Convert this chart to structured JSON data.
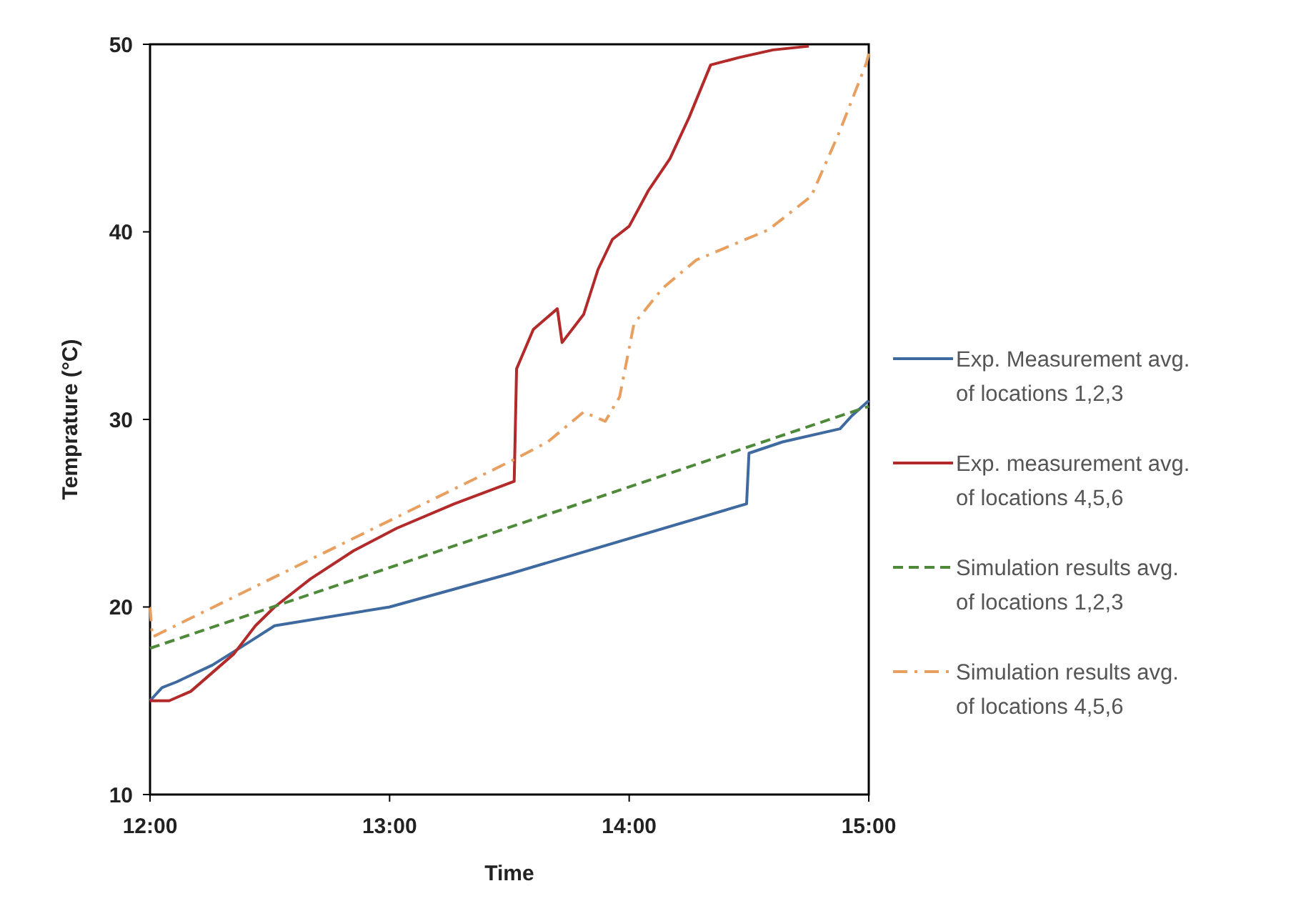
{
  "chart_data": {
    "type": "line",
    "xlabel": "Time",
    "ylabel": "Temprature (°C)",
    "xlim": [
      12,
      15
    ],
    "xticks": [
      {
        "value": 12,
        "label": "12:00"
      },
      {
        "value": 13,
        "label": "13:00"
      },
      {
        "value": 14,
        "label": "14:00"
      },
      {
        "value": 15,
        "label": "15:00"
      }
    ],
    "ylim": [
      10,
      50
    ],
    "yticks": [
      10,
      20,
      30,
      40,
      50
    ],
    "grid": false,
    "legend": "right",
    "series": [
      {
        "name": "Exp. Measurement avg. of locations 1,2,3",
        "color": "#3f6aa0",
        "line_style": "solid",
        "x": [
          12,
          12.05,
          12.11,
          12.26,
          12.41,
          12.52,
          13.0,
          13.51,
          14.49,
          14.5,
          14.64,
          14.88,
          14.93,
          15
        ],
        "values": [
          15.0,
          15.7,
          16.0,
          16.9,
          18.1,
          19.0,
          20.0,
          21.8,
          25.5,
          28.2,
          28.8,
          29.5,
          30.2,
          31.0
        ]
      },
      {
        "name": "Exp. measurement avg. of locations 4,5,6",
        "color": "#b22a2a",
        "line_style": "solid",
        "x": [
          12,
          12.08,
          12.17,
          12.26,
          12.35,
          12.44,
          12.52,
          12.67,
          12.85,
          13.03,
          13.27,
          13.52,
          13.53,
          13.6,
          13.7,
          13.72,
          13.81,
          13.87,
          13.93,
          14.0,
          14.08,
          14.17,
          14.25,
          14.34,
          14.46,
          14.6,
          14.75
        ],
        "values": [
          15.0,
          15.0,
          15.5,
          16.5,
          17.5,
          19.0,
          20.0,
          21.5,
          23.0,
          24.2,
          25.5,
          26.7,
          32.7,
          34.8,
          35.9,
          34.1,
          35.6,
          38.0,
          39.6,
          40.3,
          42.2,
          43.9,
          46.1,
          48.9,
          49.3,
          49.7,
          49.9
        ]
      },
      {
        "name": "Simulation results avg. of locations 1,2,3",
        "color": "#4e8a3a",
        "line_style": "dashed",
        "x": [
          12,
          15
        ],
        "values": [
          17.8,
          30.7
        ]
      },
      {
        "name": "Simulation results avg. of locations 4,5,6",
        "color": "#e8a060",
        "line_style": "dashdot",
        "x": [
          12,
          12.01,
          13.51,
          13.66,
          13.81,
          13.9,
          13.96,
          14.02,
          14.14,
          14.28,
          14.58,
          14.76,
          14.88,
          14.99,
          15
        ],
        "values": [
          20.0,
          18.4,
          27.8,
          28.8,
          30.4,
          29.9,
          31.2,
          35.1,
          37.0,
          38.5,
          40.1,
          41.9,
          45.4,
          49.0,
          49.5
        ]
      }
    ]
  }
}
